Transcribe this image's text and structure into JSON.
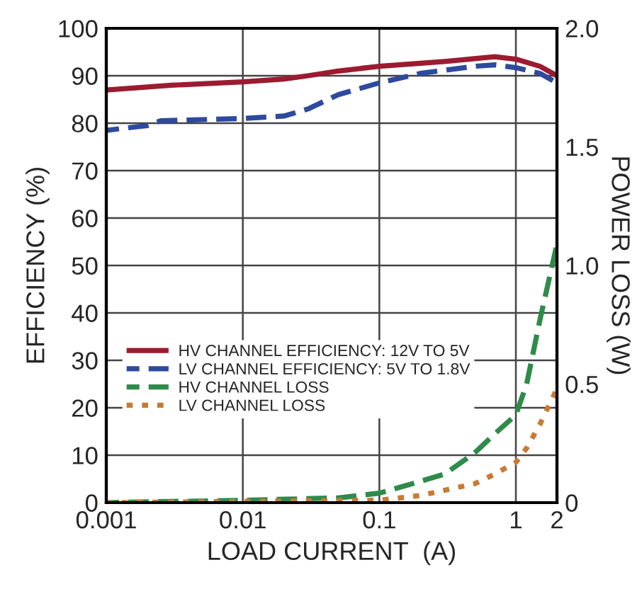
{
  "chart_data": {
    "type": "line",
    "xlabel": "LOAD CURRENT  (A)",
    "ylabel": "EFFICIENCY (%)",
    "y2label": "POWER LOSS (W)",
    "log": "x",
    "xlim": [
      0.001,
      2
    ],
    "xticks": [
      0.001,
      0.01,
      0.1,
      1,
      2
    ],
    "ylim": [
      0,
      100
    ],
    "yticks": [
      0,
      10,
      20,
      30,
      40,
      50,
      60,
      70,
      80,
      90,
      100
    ],
    "y2lim": [
      0,
      2
    ],
    "y2ticks": [
      0,
      {
        "value": 0.5,
        "label": "0.5"
      },
      {
        "value": 1,
        "label": "1.0"
      },
      {
        "value": 1.5,
        "label": "1.5"
      },
      {
        "value": 2,
        "label": "2.0"
      }
    ],
    "grid": true,
    "legend": "center left",
    "series": [
      {
        "name": "HV CHANNEL EFFICIENCY: 12V TO 5V",
        "color": "#9b1b30",
        "line_style": "solid",
        "x": [
          0.001,
          0.003,
          0.01,
          0.02,
          0.03,
          0.05,
          0.1,
          0.3,
          0.7,
          1,
          1.5,
          2
        ],
        "values": [
          87,
          88,
          88.7,
          89.3,
          90,
          91,
          92,
          93,
          94,
          93.5,
          92,
          90
        ]
      },
      {
        "name": "LV CHANNEL EFFICIENCY: 5V TO 1.8V",
        "color": "#2e4a9e",
        "line_style": "dashed",
        "x": [
          0.001,
          0.002,
          0.0025,
          0.01,
          0.02,
          0.03,
          0.05,
          0.1,
          0.2,
          0.5,
          0.7,
          1,
          1.5,
          2
        ],
        "values": [
          78.5,
          79.5,
          80.5,
          81,
          81.5,
          83,
          86,
          88.5,
          90.5,
          92,
          92.3,
          91.7,
          90.5,
          88.5
        ]
      },
      {
        "name": "HV CHANNEL LOSS",
        "color": "#2e8b4a",
        "line_style": "dashed",
        "axis": "y2",
        "x": [
          0.001,
          0.01,
          0.05,
          0.1,
          0.2,
          0.3,
          0.5,
          0.7,
          1,
          1.2,
          1.5,
          2
        ],
        "values": [
          0,
          0.01,
          0.02,
          0.04,
          0.09,
          0.12,
          0.21,
          0.29,
          0.37,
          0.5,
          0.77,
          1.09
        ]
      },
      {
        "name": "LV CHANNEL LOSS",
        "color": "#c87a33",
        "line_style": "dotted",
        "axis": "y2",
        "x": [
          0.001,
          0.01,
          0.1,
          0.2,
          0.5,
          0.7,
          1,
          1.2,
          1.5,
          2
        ],
        "values": [
          0,
          0.005,
          0.01,
          0.03,
          0.08,
          0.12,
          0.17,
          0.23,
          0.33,
          0.48
        ]
      }
    ]
  }
}
